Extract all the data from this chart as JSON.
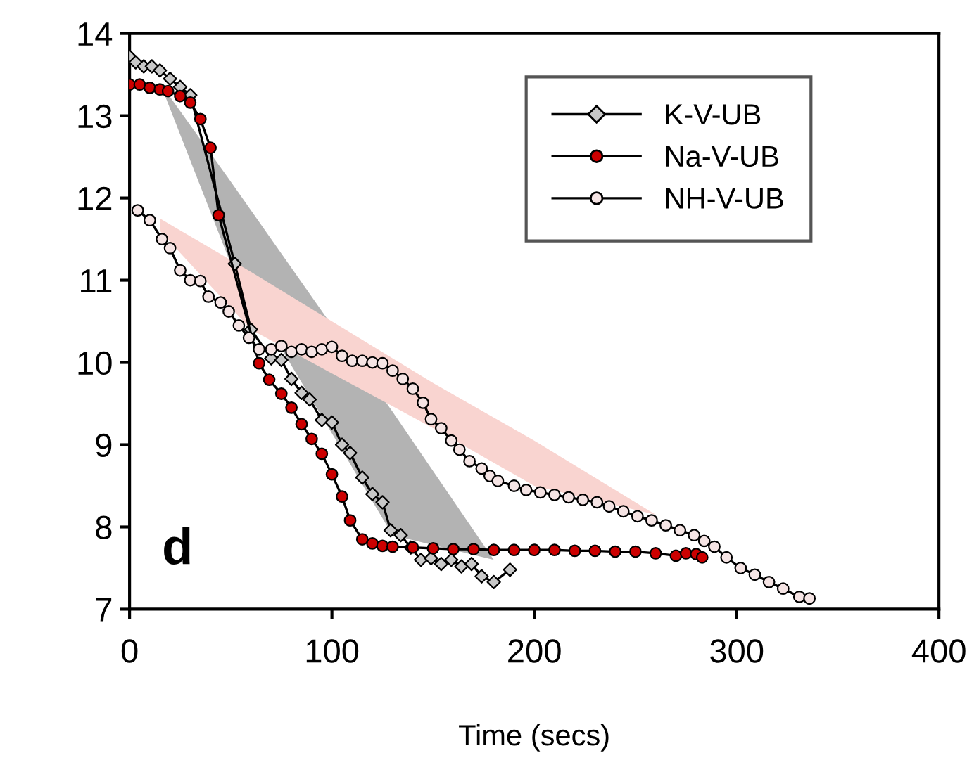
{
  "chart_data": {
    "type": "line",
    "xlabel": "Time (secs)",
    "xlim": [
      0,
      400
    ],
    "xticks": [
      0,
      100,
      200,
      300,
      400
    ],
    "ylim": [
      7,
      14
    ],
    "yticks": [
      7,
      8,
      9,
      10,
      11,
      12,
      13,
      14
    ],
    "grid": false,
    "legend": "top right",
    "annotations": [
      "d"
    ],
    "series": [
      {
        "type": "area",
        "color": "#b3b3b3",
        "x": [
          15,
          50,
          130,
          180
        ],
        "values": [
          null,
          null,
          null,
          null
        ],
        "upper": [
          13.4,
          12.2,
          9.4,
          7.6
        ],
        "lower": [
          13.4,
          11.2,
          7.9,
          7.6
        ]
      },
      {
        "type": "area",
        "color": "#f9d4d0",
        "x": [
          15,
          60,
          150,
          200,
          260
        ],
        "values": [
          null,
          null,
          null,
          null,
          null
        ],
        "upper": [
          11.75,
          11.1,
          9.75,
          9.05,
          8.15
        ],
        "lower": [
          11.6,
          10.4,
          9.2,
          8.5,
          8.15
        ]
      },
      {
        "name": "K-V-UB",
        "color": "#c8c8c8",
        "marker": "diamond",
        "x": [
          0,
          3,
          7,
          11,
          15,
          20,
          25,
          30,
          52,
          60,
          65,
          70,
          75,
          80,
          85,
          89,
          95,
          100,
          105,
          109,
          115,
          120,
          125,
          129,
          134,
          139,
          144,
          149,
          154,
          159,
          164,
          169,
          174,
          180,
          188
        ],
        "values": [
          13.72,
          13.65,
          13.6,
          13.6,
          13.55,
          13.45,
          13.35,
          13.25,
          11.2,
          10.4,
          null,
          10.05,
          10.03,
          9.8,
          9.63,
          9.55,
          9.3,
          9.27,
          9.0,
          8.9,
          8.6,
          8.4,
          8.3,
          7.96,
          7.9,
          7.75,
          7.6,
          7.62,
          7.55,
          7.6,
          7.52,
          7.55,
          7.4,
          7.33,
          7.48
        ]
      },
      {
        "name": "Na-V-UB",
        "color": "#cc0000",
        "marker": "circle",
        "x": [
          0,
          5,
          10,
          15,
          19,
          25,
          30,
          35,
          40,
          44,
          64,
          69,
          75,
          80,
          85,
          90,
          95,
          100,
          105,
          109,
          115,
          120,
          125,
          130,
          140,
          150,
          160,
          170,
          180,
          190,
          200,
          210,
          220,
          230,
          240,
          250,
          260,
          270,
          275,
          280,
          283
        ],
        "values": [
          13.38,
          13.38,
          13.34,
          13.32,
          13.3,
          13.24,
          13.16,
          12.96,
          12.61,
          11.79,
          9.99,
          9.79,
          9.62,
          9.45,
          9.25,
          9.07,
          8.89,
          8.64,
          8.37,
          8.08,
          7.85,
          7.8,
          7.77,
          7.76,
          7.75,
          7.74,
          7.73,
          7.73,
          7.72,
          7.72,
          7.72,
          7.72,
          7.71,
          7.71,
          7.7,
          7.7,
          7.68,
          7.65,
          7.68,
          7.67,
          7.63
        ]
      },
      {
        "name": "NH-V-UB",
        "color": "#f5e4e4",
        "marker": "circle",
        "x": [
          4,
          10,
          16,
          20,
          25,
          30,
          35,
          39,
          45,
          49,
          54,
          59,
          64,
          70,
          75,
          80,
          85,
          90,
          95,
          100,
          105,
          110,
          115,
          120,
          125,
          130,
          135,
          140,
          145,
          149,
          154,
          159,
          163,
          168,
          174,
          178,
          182,
          190,
          196,
          203,
          210,
          217,
          224,
          231,
          237,
          244,
          251,
          258,
          265,
          272,
          279,
          284,
          289,
          295,
          302,
          309,
          316,
          323,
          331,
          336
        ],
        "values": [
          11.85,
          11.73,
          11.5,
          11.39,
          11.12,
          11.0,
          10.99,
          10.8,
          10.73,
          10.62,
          10.45,
          10.3,
          10.16,
          10.16,
          10.2,
          10.13,
          10.16,
          10.13,
          10.16,
          10.19,
          10.08,
          10.02,
          10.02,
          10.0,
          9.99,
          9.9,
          9.8,
          9.68,
          9.51,
          9.31,
          9.2,
          9.05,
          8.94,
          8.8,
          8.71,
          8.62,
          8.56,
          8.5,
          8.45,
          8.42,
          8.39,
          8.36,
          8.33,
          8.3,
          8.25,
          8.19,
          8.13,
          8.08,
          8.02,
          7.96,
          7.9,
          7.83,
          7.76,
          7.63,
          7.5,
          7.42,
          7.33,
          7.25,
          7.15,
          7.13
        ]
      }
    ]
  }
}
